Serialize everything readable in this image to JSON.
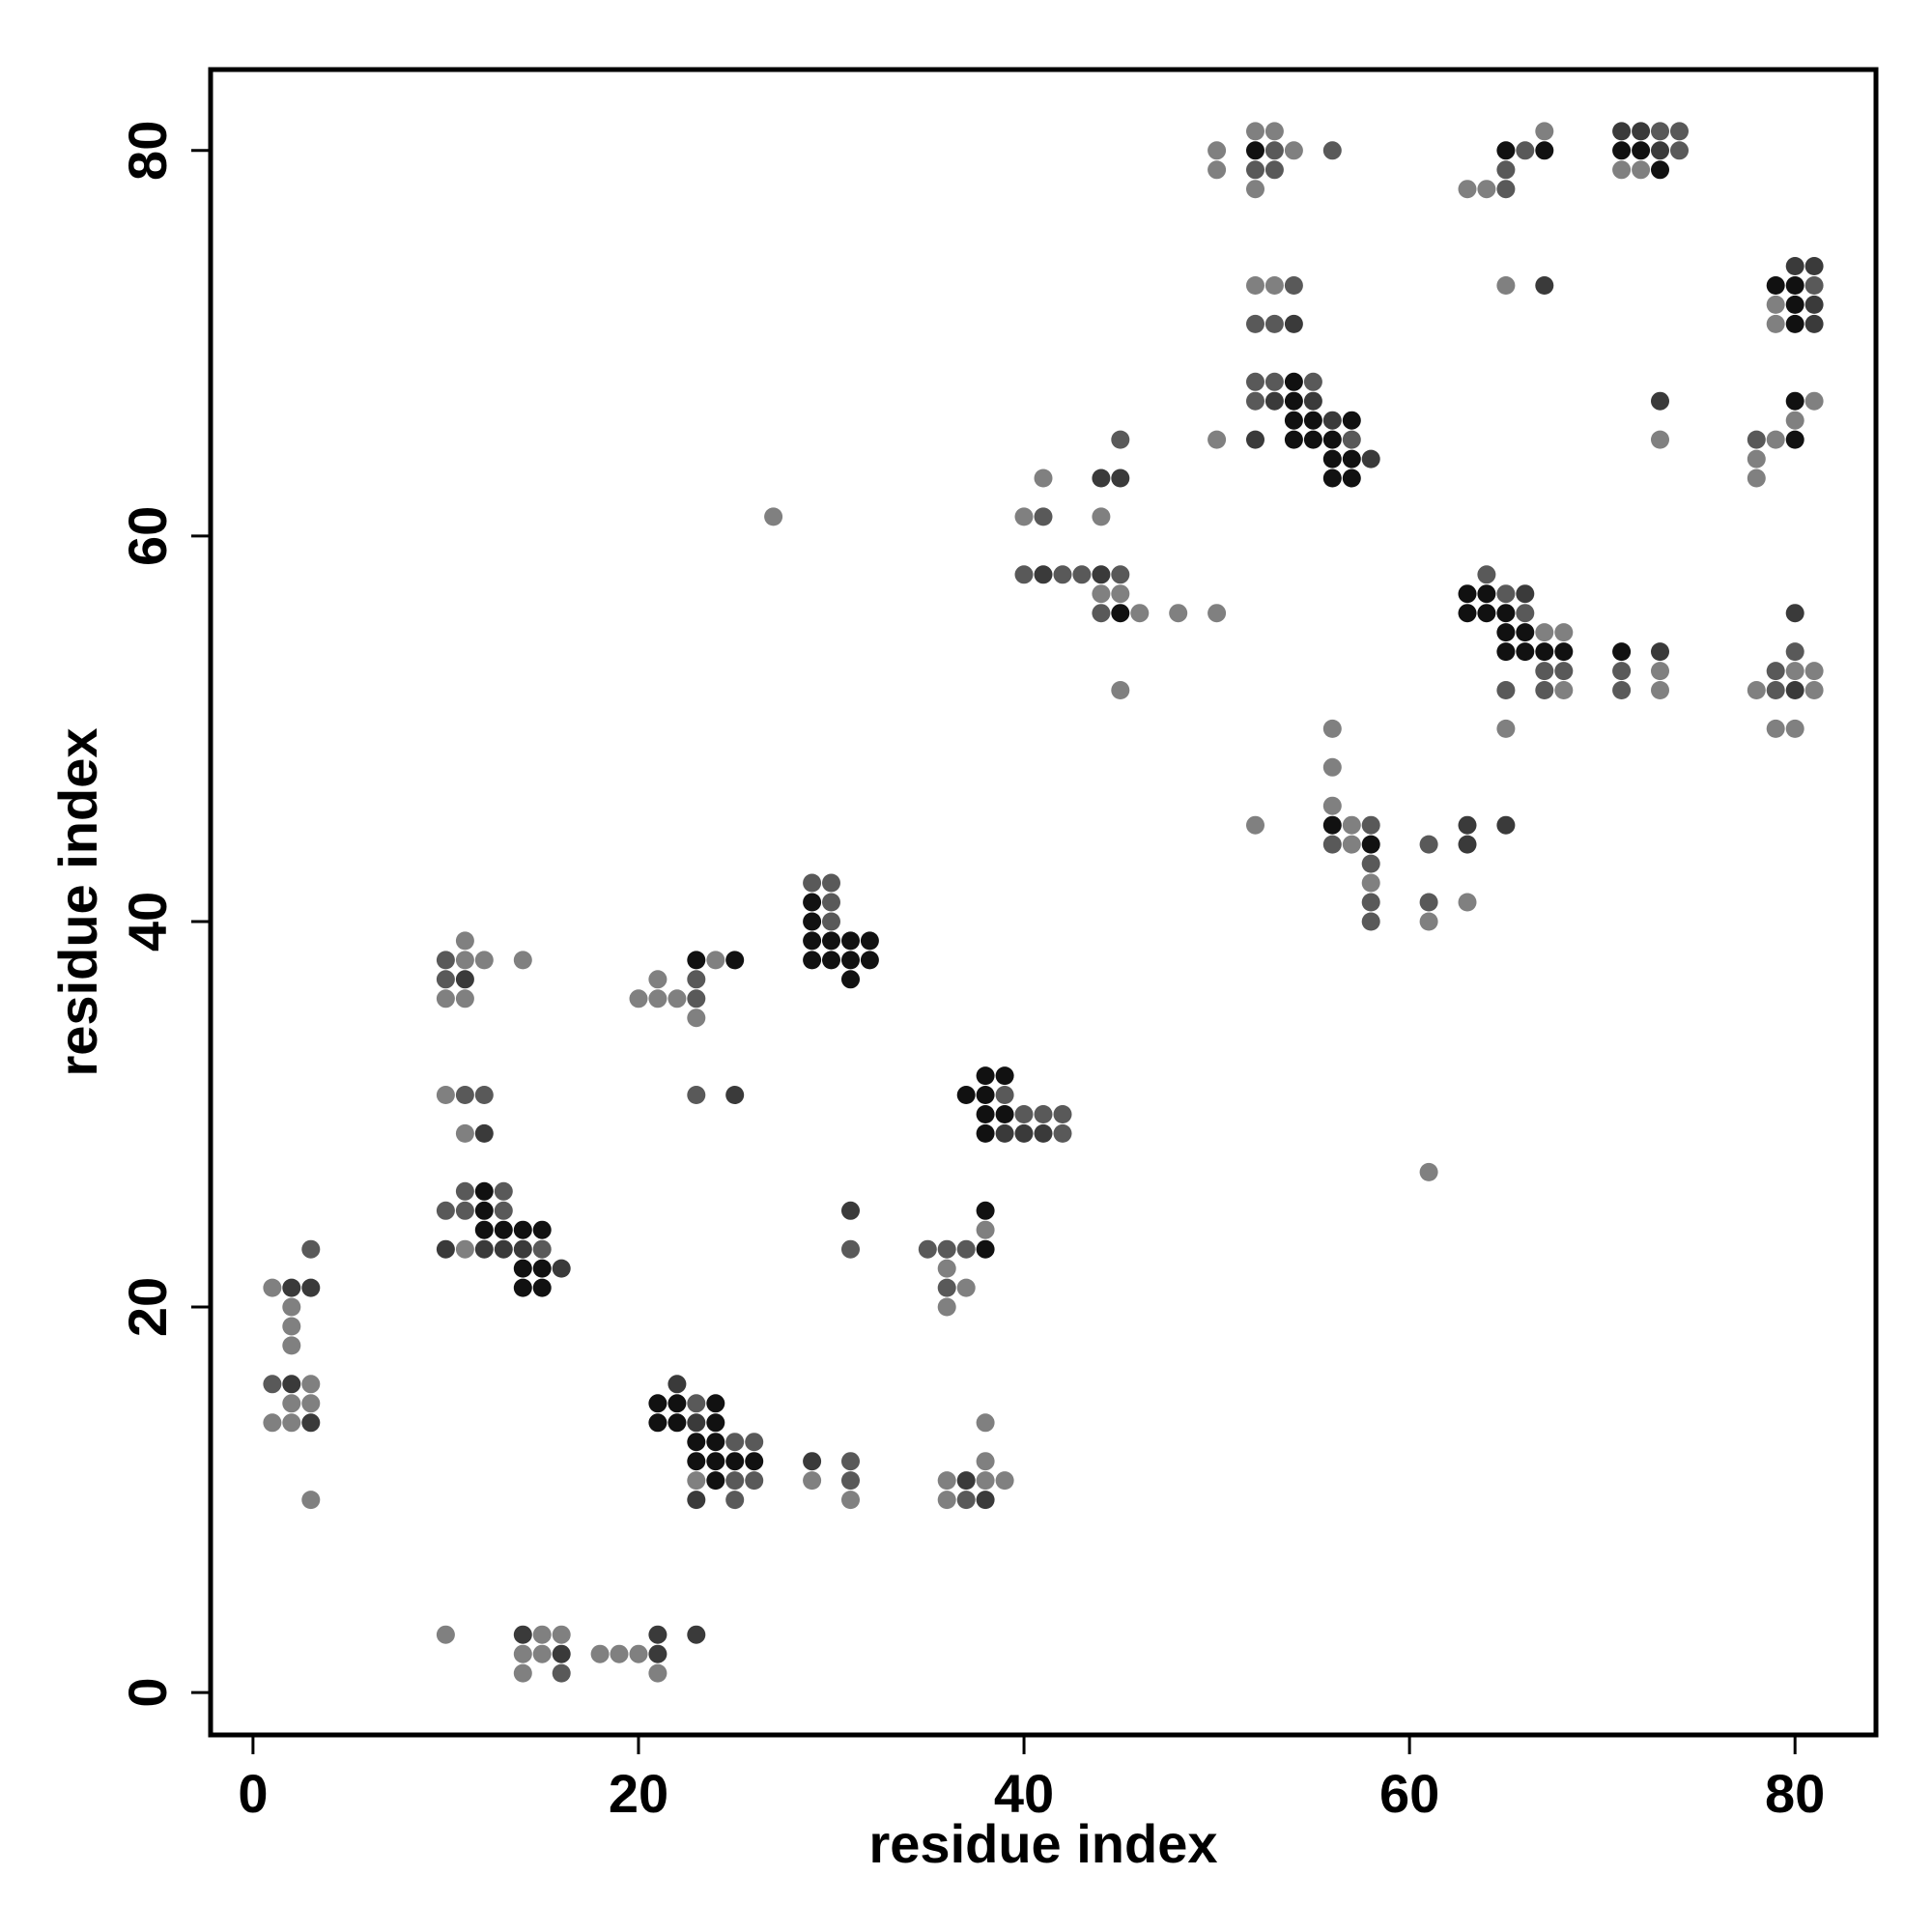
{
  "chart_data": {
    "type": "scatter",
    "title": "",
    "xlabel": "residue index",
    "ylabel": "residue index",
    "xlim": [
      -2.2,
      84.2
    ],
    "ylim": [
      -2.2,
      84.2
    ],
    "xticks": [
      0,
      20,
      40,
      60,
      80
    ],
    "yticks": [
      0,
      20,
      40,
      60,
      80
    ],
    "grid": false,
    "shade_colors": {
      "1": "#808080",
      "2": "#595959",
      "3": "#3a3a3a",
      "4": "#111111"
    },
    "points": [
      [
        1,
        21,
        1
      ],
      [
        2,
        21,
        3
      ],
      [
        3,
        21,
        3
      ],
      [
        3,
        23,
        2
      ],
      [
        2,
        20,
        1
      ],
      [
        2,
        19,
        1
      ],
      [
        2,
        18,
        1
      ],
      [
        1,
        16,
        2
      ],
      [
        2,
        16,
        3
      ],
      [
        3,
        16,
        1
      ],
      [
        2,
        15,
        1
      ],
      [
        3,
        15,
        1
      ],
      [
        1,
        14,
        1
      ],
      [
        2,
        14,
        1
      ],
      [
        3,
        14,
        3
      ],
      [
        3,
        10,
        1
      ],
      [
        10,
        38,
        2
      ],
      [
        11,
        38,
        1
      ],
      [
        12,
        38,
        1
      ],
      [
        14,
        38,
        1
      ],
      [
        11,
        39,
        1
      ],
      [
        10,
        37,
        2
      ],
      [
        11,
        37,
        3
      ],
      [
        10,
        36,
        1
      ],
      [
        11,
        36,
        1
      ],
      [
        10,
        31,
        1
      ],
      [
        11,
        31,
        2
      ],
      [
        12,
        31,
        2
      ],
      [
        11,
        29,
        1
      ],
      [
        12,
        29,
        3
      ],
      [
        11,
        26,
        2
      ],
      [
        12,
        26,
        4
      ],
      [
        13,
        26,
        2
      ],
      [
        10,
        25,
        2
      ],
      [
        11,
        25,
        2
      ],
      [
        12,
        25,
        4
      ],
      [
        13,
        25,
        2
      ],
      [
        12,
        24,
        4
      ],
      [
        13,
        24,
        4
      ],
      [
        14,
        24,
        4
      ],
      [
        15,
        24,
        4
      ],
      [
        10,
        23,
        3
      ],
      [
        11,
        23,
        1
      ],
      [
        12,
        23,
        3
      ],
      [
        13,
        23,
        3
      ],
      [
        14,
        23,
        3
      ],
      [
        15,
        23,
        2
      ],
      [
        14,
        22,
        4
      ],
      [
        15,
        22,
        4
      ],
      [
        16,
        22,
        3
      ],
      [
        14,
        21,
        4
      ],
      [
        15,
        21,
        4
      ],
      [
        10,
        3,
        1
      ],
      [
        14,
        3,
        3
      ],
      [
        15,
        3,
        1
      ],
      [
        16,
        3,
        1
      ],
      [
        14,
        2,
        1
      ],
      [
        15,
        2,
        1
      ],
      [
        16,
        2,
        3
      ],
      [
        18,
        2,
        1
      ],
      [
        19,
        2,
        1
      ],
      [
        20,
        2,
        1
      ],
      [
        21,
        2,
        3
      ],
      [
        21,
        3,
        3
      ],
      [
        23,
        3,
        3
      ],
      [
        14,
        1,
        1
      ],
      [
        16,
        1,
        2
      ],
      [
        21,
        1,
        1
      ],
      [
        20,
        36,
        1
      ],
      [
        21,
        36,
        1
      ],
      [
        21,
        37,
        1
      ],
      [
        22,
        36,
        1
      ],
      [
        23,
        36,
        2
      ],
      [
        23,
        37,
        2
      ],
      [
        23,
        38,
        4
      ],
      [
        24,
        38,
        1
      ],
      [
        25,
        38,
        4
      ],
      [
        23,
        35,
        1
      ],
      [
        23,
        31,
        2
      ],
      [
        25,
        31,
        3
      ],
      [
        22,
        16,
        3
      ],
      [
        21,
        15,
        4
      ],
      [
        22,
        15,
        4
      ],
      [
        23,
        15,
        2
      ],
      [
        24,
        15,
        4
      ],
      [
        21,
        14,
        4
      ],
      [
        22,
        14,
        4
      ],
      [
        23,
        14,
        3
      ],
      [
        24,
        14,
        4
      ],
      [
        23,
        13,
        4
      ],
      [
        24,
        13,
        4
      ],
      [
        25,
        13,
        2
      ],
      [
        26,
        13,
        2
      ],
      [
        23,
        12,
        4
      ],
      [
        24,
        12,
        4
      ],
      [
        25,
        12,
        4
      ],
      [
        26,
        12,
        4
      ],
      [
        23,
        11,
        1
      ],
      [
        24,
        11,
        4
      ],
      [
        25,
        11,
        2
      ],
      [
        26,
        11,
        2
      ],
      [
        23,
        10,
        3
      ],
      [
        25,
        10,
        2
      ],
      [
        29,
        12,
        3
      ],
      [
        31,
        12,
        2
      ],
      [
        29,
        11,
        1
      ],
      [
        31,
        11,
        2
      ],
      [
        31,
        10,
        1
      ],
      [
        27,
        61,
        1
      ],
      [
        29,
        42,
        2
      ],
      [
        30,
        42,
        2
      ],
      [
        29,
        41,
        4
      ],
      [
        30,
        41,
        2
      ],
      [
        29,
        40,
        4
      ],
      [
        30,
        40,
        2
      ],
      [
        29,
        39,
        4
      ],
      [
        30,
        39,
        4
      ],
      [
        31,
        39,
        4
      ],
      [
        32,
        39,
        4
      ],
      [
        29,
        38,
        4
      ],
      [
        30,
        38,
        4
      ],
      [
        31,
        38,
        4
      ],
      [
        32,
        38,
        4
      ],
      [
        31,
        37,
        4
      ],
      [
        31,
        25,
        3
      ],
      [
        31,
        23,
        2
      ],
      [
        38,
        32,
        4
      ],
      [
        39,
        32,
        4
      ],
      [
        37,
        31,
        4
      ],
      [
        38,
        31,
        4
      ],
      [
        39,
        31,
        2
      ],
      [
        38,
        30,
        4
      ],
      [
        39,
        30,
        4
      ],
      [
        40,
        30,
        2
      ],
      [
        41,
        30,
        2
      ],
      [
        42,
        30,
        2
      ],
      [
        38,
        29,
        4
      ],
      [
        39,
        29,
        3
      ],
      [
        40,
        29,
        3
      ],
      [
        41,
        29,
        3
      ],
      [
        42,
        29,
        2
      ],
      [
        38,
        25,
        4
      ],
      [
        38,
        24,
        1
      ],
      [
        35,
        23,
        2
      ],
      [
        36,
        23,
        2
      ],
      [
        37,
        23,
        2
      ],
      [
        38,
        23,
        4
      ],
      [
        36,
        22,
        1
      ],
      [
        36,
        21,
        2
      ],
      [
        37,
        21,
        1
      ],
      [
        36,
        20,
        1
      ],
      [
        38,
        14,
        1
      ],
      [
        38,
        12,
        1
      ],
      [
        36,
        11,
        1
      ],
      [
        37,
        11,
        3
      ],
      [
        38,
        11,
        1
      ],
      [
        39,
        11,
        1
      ],
      [
        36,
        10,
        1
      ],
      [
        37,
        10,
        2
      ],
      [
        38,
        10,
        3
      ],
      [
        41,
        63,
        1
      ],
      [
        40,
        61,
        1
      ],
      [
        41,
        61,
        2
      ],
      [
        40,
        58,
        2
      ],
      [
        41,
        58,
        3
      ],
      [
        42,
        58,
        2
      ],
      [
        43,
        58,
        2
      ],
      [
        44,
        58,
        3
      ],
      [
        45,
        58,
        2
      ],
      [
        44,
        61,
        1
      ],
      [
        44,
        63,
        3
      ],
      [
        45,
        63,
        3
      ],
      [
        45,
        65,
        2
      ],
      [
        44,
        57,
        1
      ],
      [
        45,
        57,
        1
      ],
      [
        44,
        56,
        2
      ],
      [
        45,
        56,
        4
      ],
      [
        46,
        56,
        1
      ],
      [
        48,
        56,
        1
      ],
      [
        50,
        56,
        1
      ],
      [
        45,
        52,
        1
      ],
      [
        50,
        80,
        1
      ],
      [
        50,
        79,
        1
      ],
      [
        52,
        81,
        1
      ],
      [
        53,
        81,
        1
      ],
      [
        52,
        80,
        4
      ],
      [
        53,
        80,
        2
      ],
      [
        54,
        80,
        1
      ],
      [
        52,
        79,
        2
      ],
      [
        53,
        79,
        2
      ],
      [
        52,
        78,
        1
      ],
      [
        56,
        80,
        2
      ],
      [
        52,
        73,
        1
      ],
      [
        53,
        73,
        1
      ],
      [
        54,
        73,
        2
      ],
      [
        52,
        71,
        2
      ],
      [
        53,
        71,
        2
      ],
      [
        54,
        71,
        3
      ],
      [
        52,
        68,
        2
      ],
      [
        53,
        68,
        2
      ],
      [
        54,
        68,
        4
      ],
      [
        55,
        68,
        2
      ],
      [
        52,
        67,
        2
      ],
      [
        53,
        67,
        3
      ],
      [
        54,
        67,
        4
      ],
      [
        55,
        67,
        3
      ],
      [
        54,
        66,
        4
      ],
      [
        55,
        66,
        4
      ],
      [
        56,
        66,
        3
      ],
      [
        57,
        66,
        4
      ],
      [
        54,
        65,
        4
      ],
      [
        55,
        65,
        4
      ],
      [
        56,
        65,
        4
      ],
      [
        57,
        65,
        2
      ],
      [
        56,
        64,
        4
      ],
      [
        57,
        64,
        4
      ],
      [
        58,
        64,
        3
      ],
      [
        56,
        63,
        4
      ],
      [
        57,
        63,
        4
      ],
      [
        50,
        65,
        1
      ],
      [
        52,
        65,
        3
      ],
      [
        52,
        45,
        1
      ],
      [
        56,
        50,
        1
      ],
      [
        56,
        48,
        1
      ],
      [
        56,
        46,
        1
      ],
      [
        56,
        45,
        4
      ],
      [
        57,
        45,
        1
      ],
      [
        58,
        45,
        2
      ],
      [
        56,
        44,
        2
      ],
      [
        57,
        44,
        1
      ],
      [
        58,
        44,
        4
      ],
      [
        58,
        43,
        2
      ],
      [
        58,
        42,
        1
      ],
      [
        58,
        41,
        2
      ],
      [
        58,
        40,
        2
      ],
      [
        61,
        44,
        2
      ],
      [
        61,
        41,
        2
      ],
      [
        61,
        40,
        1
      ],
      [
        63,
        45,
        3
      ],
      [
        63,
        44,
        3
      ],
      [
        65,
        45,
        3
      ],
      [
        63,
        41,
        1
      ],
      [
        61,
        27,
        1
      ],
      [
        63,
        78,
        1
      ],
      [
        64,
        78,
        1
      ],
      [
        65,
        78,
        2
      ],
      [
        65,
        79,
        2
      ],
      [
        65,
        80,
        4
      ],
      [
        66,
        80,
        2
      ],
      [
        67,
        80,
        4
      ],
      [
        67,
        81,
        1
      ],
      [
        65,
        73,
        1
      ],
      [
        67,
        73,
        3
      ],
      [
        64,
        58,
        2
      ],
      [
        63,
        57,
        4
      ],
      [
        64,
        57,
        4
      ],
      [
        65,
        57,
        2
      ],
      [
        66,
        57,
        3
      ],
      [
        63,
        56,
        4
      ],
      [
        64,
        56,
        4
      ],
      [
        65,
        56,
        4
      ],
      [
        66,
        56,
        2
      ],
      [
        65,
        55,
        4
      ],
      [
        66,
        55,
        4
      ],
      [
        67,
        55,
        1
      ],
      [
        68,
        55,
        1
      ],
      [
        65,
        54,
        4
      ],
      [
        66,
        54,
        4
      ],
      [
        67,
        54,
        4
      ],
      [
        68,
        54,
        4
      ],
      [
        67,
        53,
        2
      ],
      [
        68,
        53,
        2
      ],
      [
        65,
        52,
        2
      ],
      [
        67,
        52,
        2
      ],
      [
        68,
        52,
        1
      ],
      [
        65,
        50,
        1
      ],
      [
        71,
        81,
        3
      ],
      [
        72,
        81,
        3
      ],
      [
        73,
        81,
        2
      ],
      [
        74,
        81,
        2
      ],
      [
        71,
        80,
        4
      ],
      [
        72,
        80,
        4
      ],
      [
        73,
        80,
        3
      ],
      [
        74,
        80,
        2
      ],
      [
        71,
        79,
        1
      ],
      [
        72,
        79,
        1
      ],
      [
        73,
        79,
        4
      ],
      [
        73,
        67,
        3
      ],
      [
        73,
        65,
        1
      ],
      [
        71,
        54,
        4
      ],
      [
        73,
        54,
        3
      ],
      [
        71,
        53,
        2
      ],
      [
        73,
        53,
        1
      ],
      [
        71,
        52,
        2
      ],
      [
        73,
        52,
        1
      ],
      [
        80,
        74,
        3
      ],
      [
        81,
        74,
        3
      ],
      [
        79,
        73,
        4
      ],
      [
        80,
        73,
        4
      ],
      [
        81,
        73,
        2
      ],
      [
        79,
        72,
        1
      ],
      [
        80,
        72,
        4
      ],
      [
        81,
        72,
        3
      ],
      [
        79,
        71,
        1
      ],
      [
        80,
        71,
        4
      ],
      [
        81,
        71,
        3
      ],
      [
        80,
        67,
        4
      ],
      [
        81,
        67,
        1
      ],
      [
        80,
        66,
        1
      ],
      [
        78,
        65,
        2
      ],
      [
        79,
        65,
        1
      ],
      [
        80,
        65,
        4
      ],
      [
        78,
        64,
        1
      ],
      [
        78,
        63,
        1
      ],
      [
        80,
        56,
        3
      ],
      [
        80,
        54,
        2
      ],
      [
        79,
        53,
        2
      ],
      [
        80,
        53,
        1
      ],
      [
        81,
        53,
        1
      ],
      [
        78,
        52,
        1
      ],
      [
        79,
        52,
        2
      ],
      [
        80,
        52,
        3
      ],
      [
        81,
        52,
        1
      ],
      [
        79,
        50,
        1
      ],
      [
        80,
        50,
        1
      ]
    ]
  }
}
